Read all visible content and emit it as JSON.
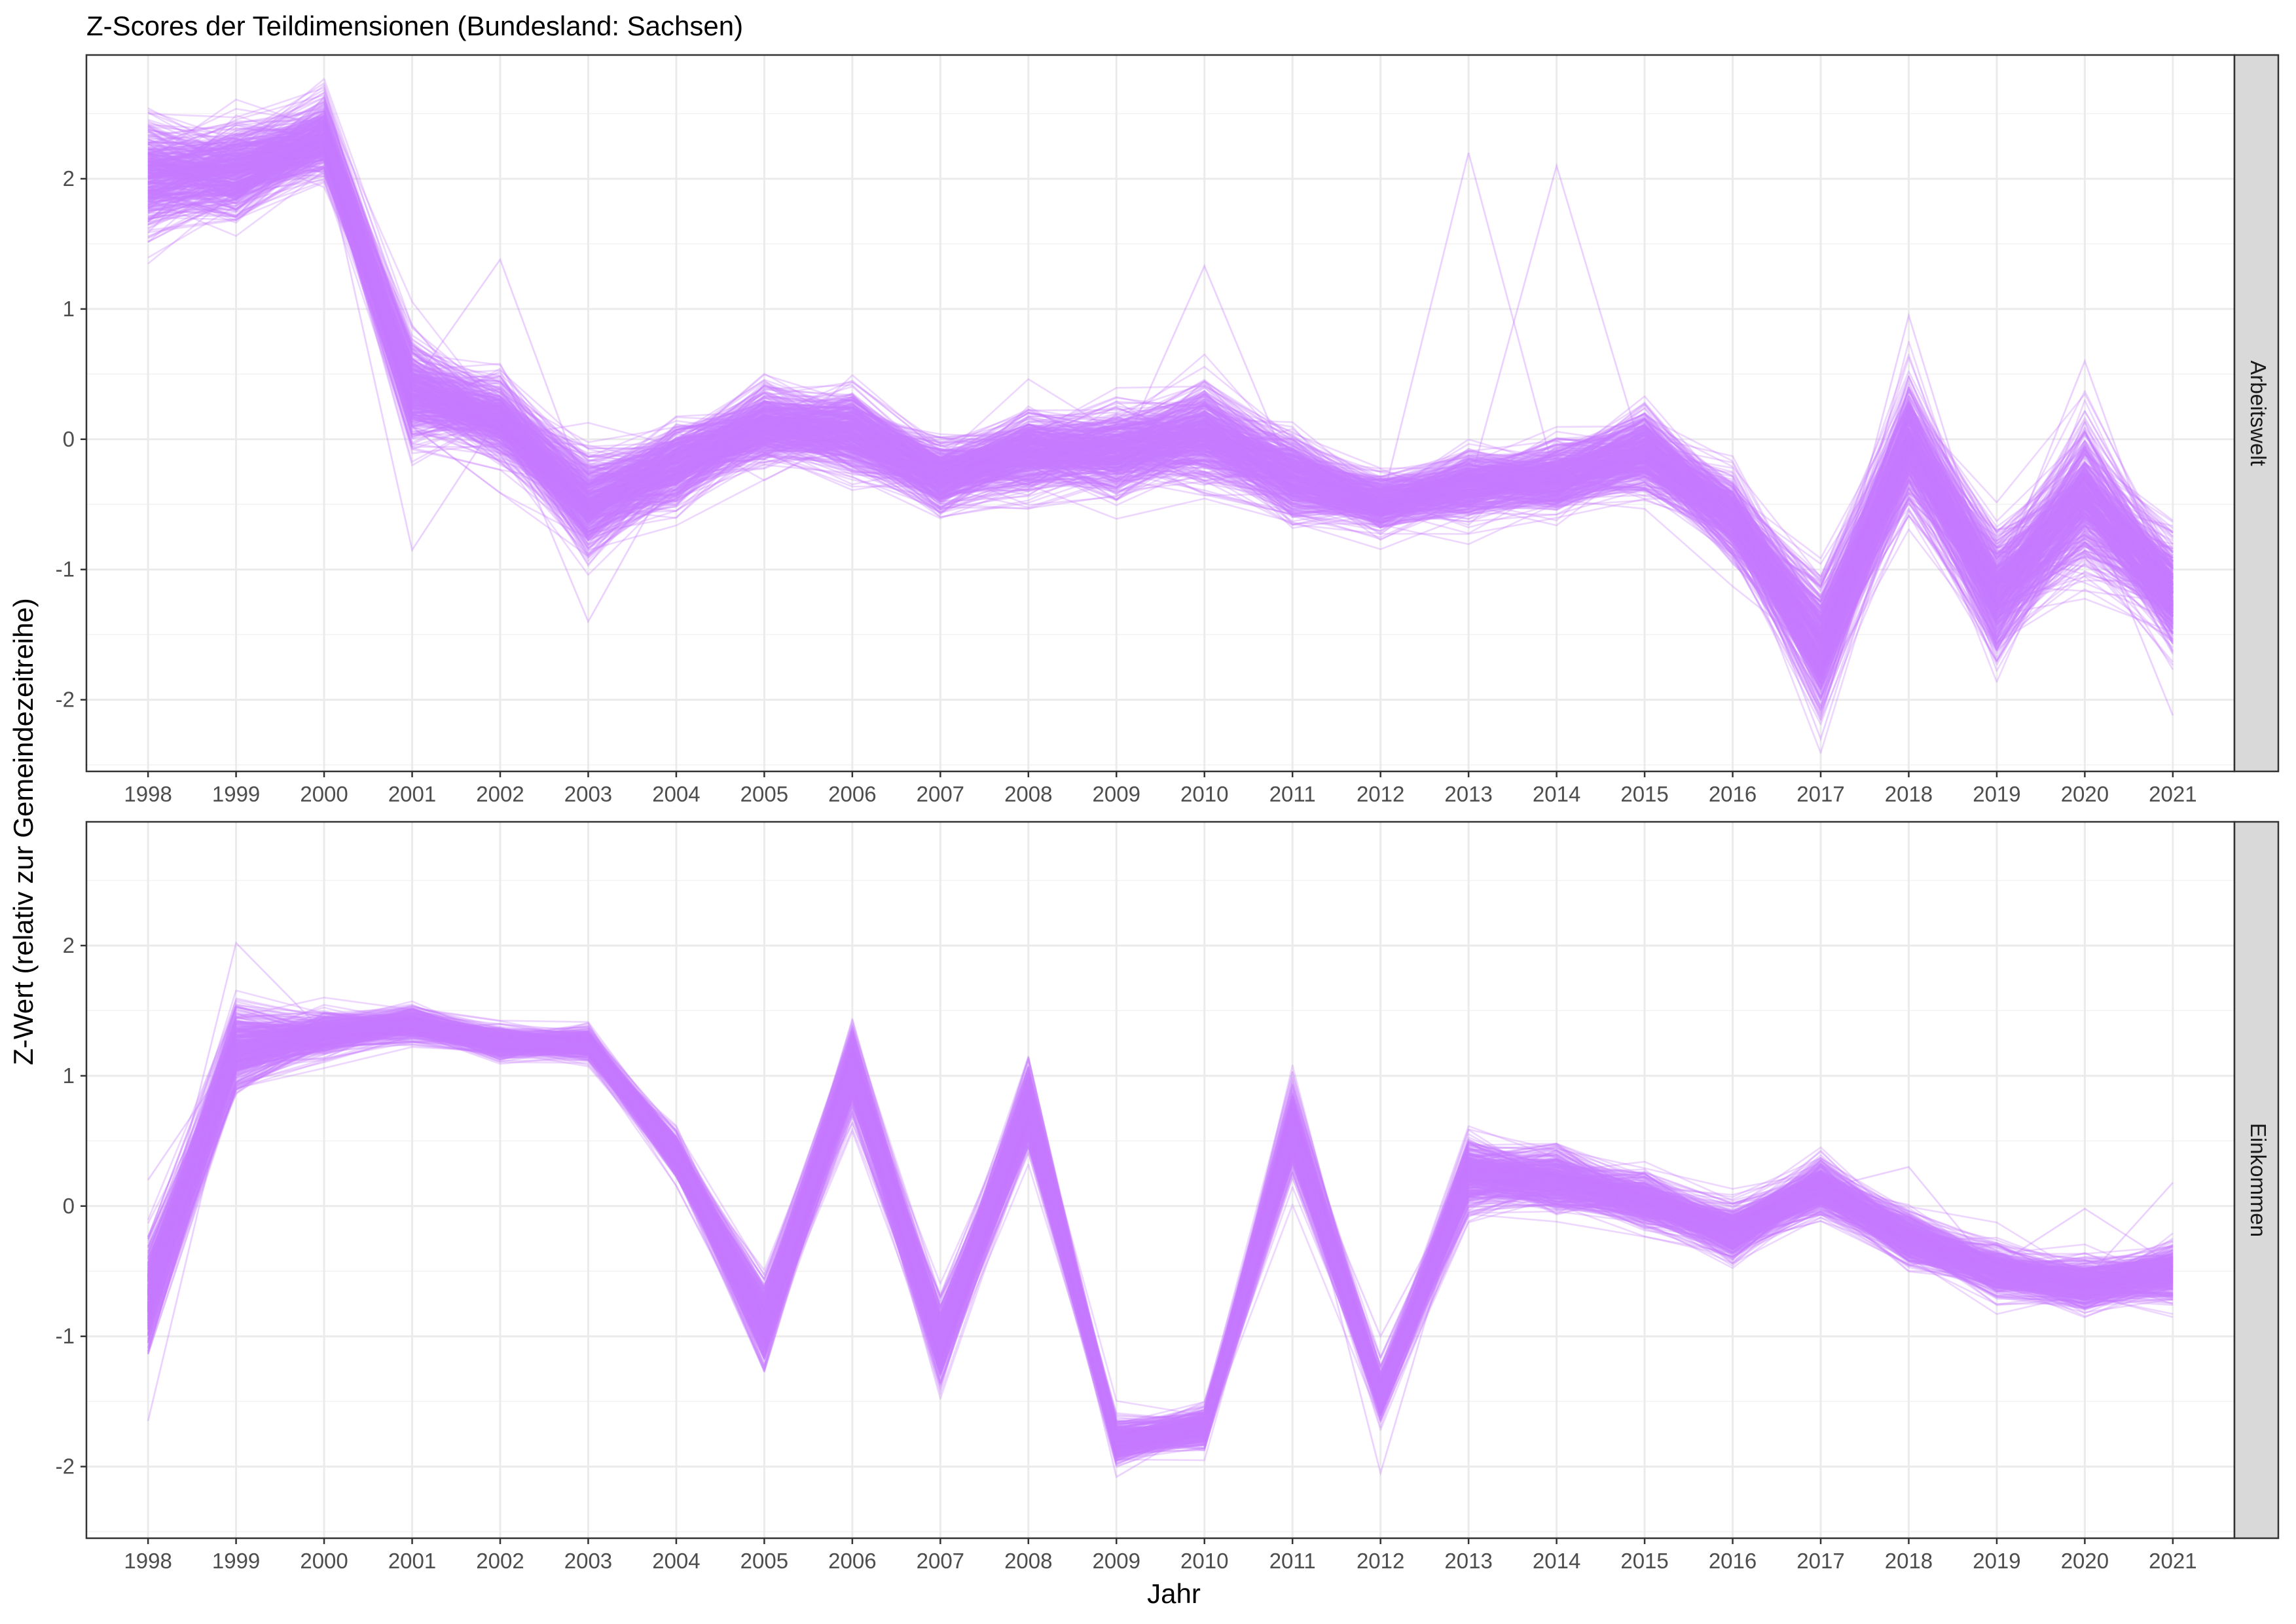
{
  "chart_data": {
    "type": "line",
    "title": "Z-Scores der Teildimensionen (Bundesland: Sachsen)",
    "xlabel": "Jahr",
    "ylabel": "Z-Wert (relativ zur Gemeindezeitreihe)",
    "x": [
      1998,
      1999,
      2000,
      2001,
      2002,
      2003,
      2004,
      2005,
      2006,
      2007,
      2008,
      2009,
      2010,
      2011,
      2012,
      2013,
      2014,
      2015,
      2016,
      2017,
      2018,
      2019,
      2020,
      2021
    ],
    "xlim": [
      1997.3,
      2021.7
    ],
    "ylim": [
      -2.55,
      2.95
    ],
    "yticks": [
      -2,
      -1,
      0,
      1,
      2
    ],
    "grid": true,
    "legend": "none",
    "line_color": "#c77cff",
    "series_count_approx": 420,
    "panels": [
      {
        "strip": "Arbeitswelt",
        "center": [
          2.0,
          2.05,
          2.3,
          0.35,
          0.15,
          -0.5,
          -0.2,
          0.1,
          0.05,
          -0.3,
          -0.1,
          -0.1,
          0.05,
          -0.3,
          -0.5,
          -0.35,
          -0.3,
          -0.1,
          -0.6,
          -1.6,
          -0.05,
          -1.2,
          -0.45,
          -1.2
        ],
        "spread": [
          0.4,
          0.35,
          0.28,
          0.38,
          0.3,
          0.35,
          0.3,
          0.3,
          0.32,
          0.25,
          0.3,
          0.32,
          0.35,
          0.3,
          0.22,
          0.25,
          0.25,
          0.3,
          0.28,
          0.5,
          0.45,
          0.45,
          0.5,
          0.4
        ],
        "outliers": [
          {
            "year": 2013,
            "value": 2.2
          },
          {
            "year": 2014,
            "value": 2.1
          },
          {
            "year": 2010,
            "value": 1.33
          },
          {
            "year": 2002,
            "value": 1.38
          },
          {
            "year": 2001,
            "value": -0.85
          },
          {
            "year": 2003,
            "value": -1.4
          },
          {
            "year": 2017,
            "value": -2.3
          },
          {
            "year": 2021,
            "value": -2.12
          },
          {
            "year": 2018,
            "value": 0.95
          },
          {
            "year": 2020,
            "value": 0.6
          }
        ]
      },
      {
        "strip": "Einkommen",
        "center": [
          -0.7,
          1.2,
          1.32,
          1.4,
          1.25,
          1.25,
          0.4,
          -0.9,
          1.05,
          -1.05,
          0.75,
          -1.8,
          -1.7,
          0.6,
          -1.45,
          0.25,
          0.2,
          0.05,
          -0.2,
          0.15,
          -0.25,
          -0.5,
          -0.6,
          -0.5
        ],
        "spread": [
          0.4,
          0.3,
          0.15,
          0.12,
          0.12,
          0.12,
          0.15,
          0.3,
          0.3,
          0.3,
          0.3,
          0.15,
          0.15,
          0.3,
          0.18,
          0.25,
          0.22,
          0.2,
          0.2,
          0.2,
          0.2,
          0.18,
          0.18,
          0.2
        ],
        "outliers": [
          {
            "year": 1998,
            "value": -1.65
          },
          {
            "year": 1998,
            "value": 0.2
          },
          {
            "year": 1999,
            "value": 2.02
          },
          {
            "year": 2012,
            "value": -2.05
          },
          {
            "year": 2012,
            "value": -1.0
          },
          {
            "year": 2009,
            "value": -2.08
          },
          {
            "year": 2018,
            "value": 0.3
          },
          {
            "year": 2020,
            "value": -0.02
          },
          {
            "year": 2021,
            "value": 0.18
          }
        ]
      }
    ]
  }
}
